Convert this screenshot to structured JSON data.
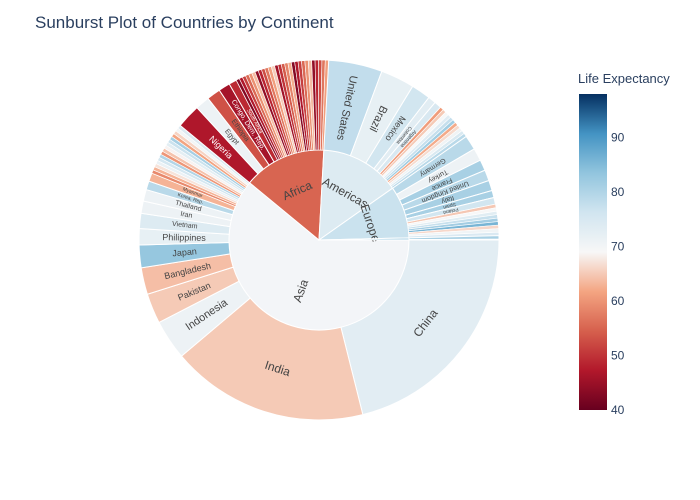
{
  "chart_data": {
    "type": "sunburst",
    "title": "Sunburst Plot of Countries by Continent",
    "colorbar": {
      "title": "Life Expectancy",
      "range": [
        40,
        98
      ],
      "ticks": [
        40,
        50,
        60,
        70,
        80,
        90
      ],
      "colorscale": "RdBu"
    },
    "root": "",
    "continents": [
      {
        "name": "Asia",
        "value": 3812,
        "color_value": 70,
        "children": [
          {
            "name": "China",
            "value": 1318,
            "color_value": 73
          },
          {
            "name": "India",
            "value": 1110,
            "color_value": 65
          },
          {
            "name": "Indonesia",
            "value": 224,
            "color_value": 71
          },
          {
            "name": "Pakistan",
            "value": 169,
            "color_value": 65
          },
          {
            "name": "Bangladesh",
            "value": 150,
            "color_value": 64
          },
          {
            "name": "Japan",
            "value": 127,
            "color_value": 83
          },
          {
            "name": "Philippines",
            "value": 91,
            "color_value": 72
          },
          {
            "name": "Vietnam",
            "value": 85,
            "color_value": 74
          },
          {
            "name": "Iran",
            "value": 69,
            "color_value": 71
          },
          {
            "name": "Thailand",
            "value": 65,
            "color_value": 71
          },
          {
            "name": "Korea, Rep.",
            "value": 49,
            "color_value": 79
          },
          {
            "name": "Myanmar",
            "value": 47,
            "color_value": 63
          },
          {
            "name": "",
            "value": 308,
            "color_value": 70
          }
        ]
      },
      {
        "name": "Africa",
        "value": 930,
        "color_value": 55,
        "children": [
          {
            "name": "Nigeria",
            "value": 135,
            "color_value": 47
          },
          {
            "name": "Egypt",
            "value": 80,
            "color_value": 71
          },
          {
            "name": "Ethiopia",
            "value": 77,
            "color_value": 53
          },
          {
            "name": "Congo, Dem. Rep.",
            "value": 65,
            "color_value": 46
          },
          {
            "name": "South Africa",
            "value": 44,
            "color_value": 49
          },
          {
            "name": "",
            "value": 529,
            "color_value": 54
          }
        ]
      },
      {
        "name": "Americas",
        "value": 899,
        "color_value": 74,
        "children": [
          {
            "name": "United States",
            "value": 301,
            "color_value": 78
          },
          {
            "name": "Brazil",
            "value": 190,
            "color_value": 72
          },
          {
            "name": "Mexico",
            "value": 109,
            "color_value": 76
          },
          {
            "name": "Colombia",
            "value": 44,
            "color_value": 73
          },
          {
            "name": "Argentina",
            "value": 40,
            "color_value": 75
          },
          {
            "name": "",
            "value": 215,
            "color_value": 72
          }
        ]
      },
      {
        "name": "Europe",
        "value": 586,
        "color_value": 77,
        "children": [
          {
            "name": "Germany",
            "value": 82,
            "color_value": 79
          },
          {
            "name": "Turkey",
            "value": 71,
            "color_value": 71
          },
          {
            "name": "France",
            "value": 61,
            "color_value": 81
          },
          {
            "name": "United Kingdom",
            "value": 61,
            "color_value": 79
          },
          {
            "name": "Italy",
            "value": 58,
            "color_value": 81
          },
          {
            "name": "Spain",
            "value": 40,
            "color_value": 81
          },
          {
            "name": "Poland",
            "value": 38,
            "color_value": 76
          },
          {
            "name": "",
            "value": 175,
            "color_value": 76
          }
        ]
      },
      {
        "name": "",
        "value": 24,
        "color_value": 81,
        "children": [
          {
            "name": "",
            "value": 20,
            "color_value": 81
          },
          {
            "name": "",
            "value": 4,
            "color_value": 80
          }
        ]
      }
    ]
  }
}
